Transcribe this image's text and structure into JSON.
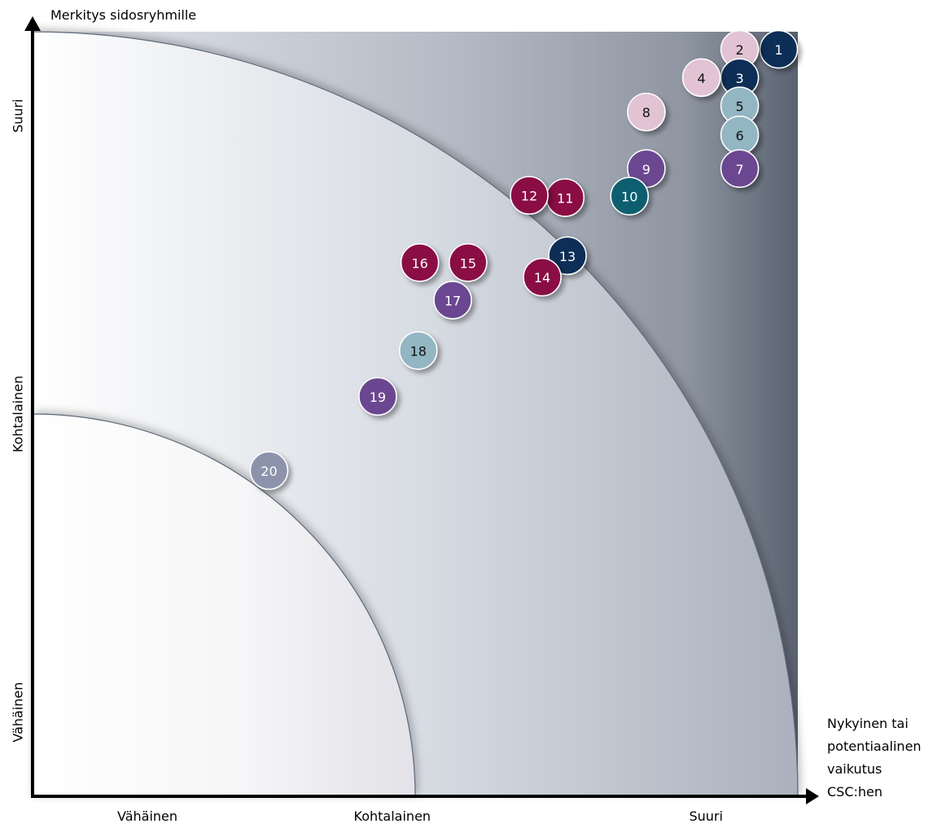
{
  "chart_data": {
    "type": "scatter",
    "title": "",
    "ylabel": "Merkitys sidosryhmille",
    "xlabel": "Nykyinen tai potentiaalinen vaikutus CSC:hen",
    "xlabel_lines": [
      "Nykyinen tai",
      "potentiaalinen",
      "vaikutus",
      "CSC:hen"
    ],
    "xlim": [
      0,
      100
    ],
    "ylim": [
      0,
      100
    ],
    "x_tick_labels": [
      "Vähäinen",
      "Kohtalainen",
      "Suuri"
    ],
    "y_tick_labels": [
      "Vähäinen",
      "Kohtalainen",
      "Suuri"
    ],
    "zones": [
      {
        "level": "Vähäinen",
        "radius": 50
      },
      {
        "level": "Kohtalainen",
        "radius": 100
      }
    ],
    "colors": {
      "navy": "#0b2d57",
      "pink": "#e2c3d3",
      "lightblue": "#93b6c3",
      "purple": "#6c4691",
      "crimson": "#8a0b45",
      "teal": "#0d5e6f",
      "slate": "#8c93ab"
    },
    "points": [
      {
        "label": "1",
        "x": 97.5,
        "y": 97.7,
        "color": "navy"
      },
      {
        "label": "2",
        "x": 92.4,
        "y": 97.7,
        "color": "pink"
      },
      {
        "label": "3",
        "x": 92.4,
        "y": 94.0,
        "color": "navy"
      },
      {
        "label": "4",
        "x": 87.4,
        "y": 94.0,
        "color": "pink"
      },
      {
        "label": "5",
        "x": 92.4,
        "y": 90.3,
        "color": "lightblue"
      },
      {
        "label": "6",
        "x": 92.4,
        "y": 86.5,
        "color": "lightblue"
      },
      {
        "label": "7",
        "x": 92.4,
        "y": 82.1,
        "color": "purple"
      },
      {
        "label": "8",
        "x": 80.2,
        "y": 89.5,
        "color": "pink"
      },
      {
        "label": "9",
        "x": 80.2,
        "y": 82.1,
        "color": "purple"
      },
      {
        "label": "10",
        "x": 78.0,
        "y": 78.5,
        "color": "teal"
      },
      {
        "label": "11",
        "x": 69.6,
        "y": 78.3,
        "color": "crimson"
      },
      {
        "label": "12",
        "x": 64.9,
        "y": 78.6,
        "color": "crimson"
      },
      {
        "label": "13",
        "x": 69.9,
        "y": 70.7,
        "color": "navy"
      },
      {
        "label": "14",
        "x": 66.6,
        "y": 67.9,
        "color": "crimson"
      },
      {
        "label": "15",
        "x": 56.9,
        "y": 69.8,
        "color": "crimson"
      },
      {
        "label": "16",
        "x": 50.6,
        "y": 69.8,
        "color": "crimson"
      },
      {
        "label": "17",
        "x": 54.9,
        "y": 64.9,
        "color": "purple"
      },
      {
        "label": "18",
        "x": 50.4,
        "y": 58.3,
        "color": "lightblue"
      },
      {
        "label": "19",
        "x": 45.1,
        "y": 52.3,
        "color": "purple"
      },
      {
        "label": "20",
        "x": 30.9,
        "y": 42.6,
        "color": "slate"
      }
    ]
  }
}
